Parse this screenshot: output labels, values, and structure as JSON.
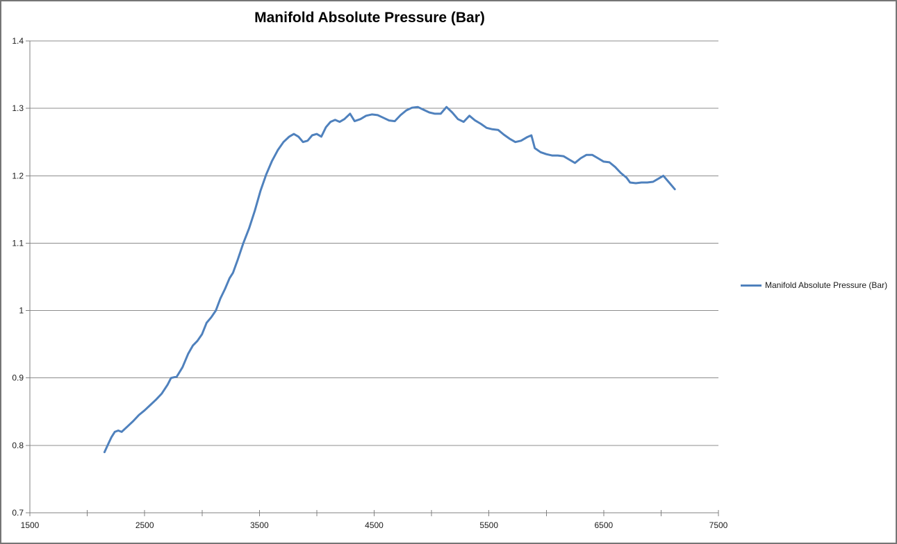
{
  "window": {
    "background": "#ffffff",
    "frame_color": "#757575"
  },
  "chart_data": {
    "type": "line",
    "title": "Manifold Absolute Pressure (Bar)",
    "xlabel": "",
    "ylabel": "",
    "xlim": [
      1500,
      7500
    ],
    "ylim": [
      0.7,
      1.4
    ],
    "x_major_ticks": [
      1500,
      2500,
      3500,
      4500,
      5500,
      6500,
      7500
    ],
    "x_tick_labels": [
      "1500",
      "2500",
      "3500",
      "4500",
      "5500",
      "6500",
      "7500"
    ],
    "x_minor_tick_step": 500,
    "y_ticks": [
      0.7,
      0.8,
      0.9,
      1.0,
      1.1,
      1.2,
      1.3,
      1.4
    ],
    "y_tick_labels": [
      "0.7",
      "0.8",
      "0.9",
      "1",
      "1.1",
      "1.2",
      "1.3",
      "1.4"
    ],
    "grid": "horizontal",
    "grid_color": "#8c8c8c",
    "axis_color": "#808080",
    "text_color": "#1a1a1a",
    "legend_position": "right",
    "legend_label": "Manifold Absolute Pressure (Bar)",
    "series": [
      {
        "name": "Manifold Absolute Pressure (Bar)",
        "color": "#4F81BD",
        "line_width": 3,
        "points": [
          [
            2150,
            0.79
          ],
          [
            2180,
            0.801
          ],
          [
            2210,
            0.812
          ],
          [
            2240,
            0.82
          ],
          [
            2270,
            0.822
          ],
          [
            2300,
            0.82
          ],
          [
            2350,
            0.828
          ],
          [
            2400,
            0.836
          ],
          [
            2450,
            0.845
          ],
          [
            2500,
            0.852
          ],
          [
            2550,
            0.86
          ],
          [
            2600,
            0.868
          ],
          [
            2650,
            0.877
          ],
          [
            2700,
            0.89
          ],
          [
            2730,
            0.9
          ],
          [
            2780,
            0.902
          ],
          [
            2830,
            0.916
          ],
          [
            2880,
            0.936
          ],
          [
            2920,
            0.948
          ],
          [
            2960,
            0.955
          ],
          [
            3000,
            0.965
          ],
          [
            3040,
            0.982
          ],
          [
            3080,
            0.99
          ],
          [
            3120,
            1.0
          ],
          [
            3160,
            1.018
          ],
          [
            3200,
            1.032
          ],
          [
            3240,
            1.048
          ],
          [
            3270,
            1.056
          ],
          [
            3310,
            1.075
          ],
          [
            3360,
            1.1
          ],
          [
            3410,
            1.122
          ],
          [
            3460,
            1.148
          ],
          [
            3510,
            1.178
          ],
          [
            3560,
            1.202
          ],
          [
            3610,
            1.222
          ],
          [
            3660,
            1.238
          ],
          [
            3710,
            1.25
          ],
          [
            3760,
            1.258
          ],
          [
            3800,
            1.262
          ],
          [
            3840,
            1.258
          ],
          [
            3880,
            1.25
          ],
          [
            3920,
            1.252
          ],
          [
            3960,
            1.26
          ],
          [
            4000,
            1.262
          ],
          [
            4040,
            1.258
          ],
          [
            4080,
            1.272
          ],
          [
            4120,
            1.28
          ],
          [
            4160,
            1.283
          ],
          [
            4200,
            1.28
          ],
          [
            4240,
            1.284
          ],
          [
            4290,
            1.292
          ],
          [
            4330,
            1.281
          ],
          [
            4380,
            1.284
          ],
          [
            4430,
            1.289
          ],
          [
            4480,
            1.291
          ],
          [
            4530,
            1.29
          ],
          [
            4580,
            1.286
          ],
          [
            4630,
            1.282
          ],
          [
            4680,
            1.281
          ],
          [
            4730,
            1.29
          ],
          [
            4780,
            1.297
          ],
          [
            4830,
            1.301
          ],
          [
            4880,
            1.302
          ],
          [
            4930,
            1.298
          ],
          [
            4980,
            1.294
          ],
          [
            5030,
            1.292
          ],
          [
            5080,
            1.292
          ],
          [
            5130,
            1.302
          ],
          [
            5180,
            1.294
          ],
          [
            5230,
            1.284
          ],
          [
            5280,
            1.28
          ],
          [
            5330,
            1.289
          ],
          [
            5380,
            1.282
          ],
          [
            5430,
            1.277
          ],
          [
            5480,
            1.271
          ],
          [
            5530,
            1.269
          ],
          [
            5580,
            1.268
          ],
          [
            5630,
            1.261
          ],
          [
            5680,
            1.255
          ],
          [
            5730,
            1.25
          ],
          [
            5780,
            1.252
          ],
          [
            5830,
            1.257
          ],
          [
            5870,
            1.26
          ],
          [
            5900,
            1.241
          ],
          [
            5950,
            1.235
          ],
          [
            6000,
            1.232
          ],
          [
            6050,
            1.23
          ],
          [
            6100,
            1.23
          ],
          [
            6150,
            1.229
          ],
          [
            6200,
            1.224
          ],
          [
            6250,
            1.219
          ],
          [
            6300,
            1.226
          ],
          [
            6350,
            1.231
          ],
          [
            6400,
            1.231
          ],
          [
            6450,
            1.226
          ],
          [
            6500,
            1.221
          ],
          [
            6550,
            1.22
          ],
          [
            6600,
            1.213
          ],
          [
            6650,
            1.204
          ],
          [
            6700,
            1.197
          ],
          [
            6730,
            1.19
          ],
          [
            6780,
            1.189
          ],
          [
            6830,
            1.19
          ],
          [
            6880,
            1.19
          ],
          [
            6930,
            1.191
          ],
          [
            6980,
            1.196
          ],
          [
            7020,
            1.2
          ],
          [
            7070,
            1.19
          ],
          [
            7120,
            1.18
          ]
        ]
      }
    ]
  }
}
